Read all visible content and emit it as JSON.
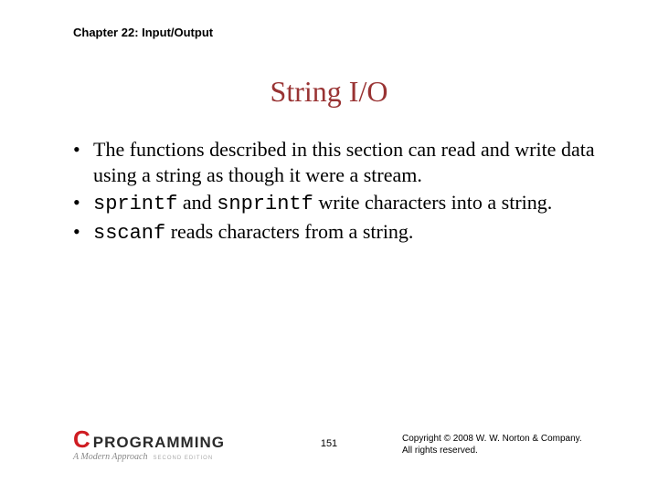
{
  "header": {
    "chapter": "Chapter 22: Input/Output"
  },
  "title": "String I/O",
  "bullets": [
    {
      "marker": "•",
      "runs": [
        {
          "t": "The functions described in this section can read and write data using a string as though it were a stream.",
          "code": false
        }
      ]
    },
    {
      "marker": "•",
      "runs": [
        {
          "t": "sprintf",
          "code": true
        },
        {
          "t": " and ",
          "code": false
        },
        {
          "t": "snprintf",
          "code": true
        },
        {
          "t": " write characters into a string.",
          "code": false
        }
      ]
    },
    {
      "marker": "•",
      "runs": [
        {
          "t": "sscanf",
          "code": true
        },
        {
          "t": " reads characters from a string.",
          "code": false
        }
      ]
    }
  ],
  "footer": {
    "logo_c": "C",
    "logo_prog": "PROGRAMMING",
    "logo_sub": "A Modern Approach",
    "logo_edition": "SECOND EDITION",
    "page": "151",
    "copyright_line1": "Copyright © 2008 W. W. Norton & Company.",
    "copyright_line2": "All rights reserved."
  },
  "colors": {
    "title": "#993333",
    "logo_red": "#cf1c22",
    "text": "#000000",
    "background": "#ffffff"
  },
  "fonts": {
    "header_size": 13,
    "title_size": 32,
    "body_size": 22,
    "footer_size": 10
  }
}
